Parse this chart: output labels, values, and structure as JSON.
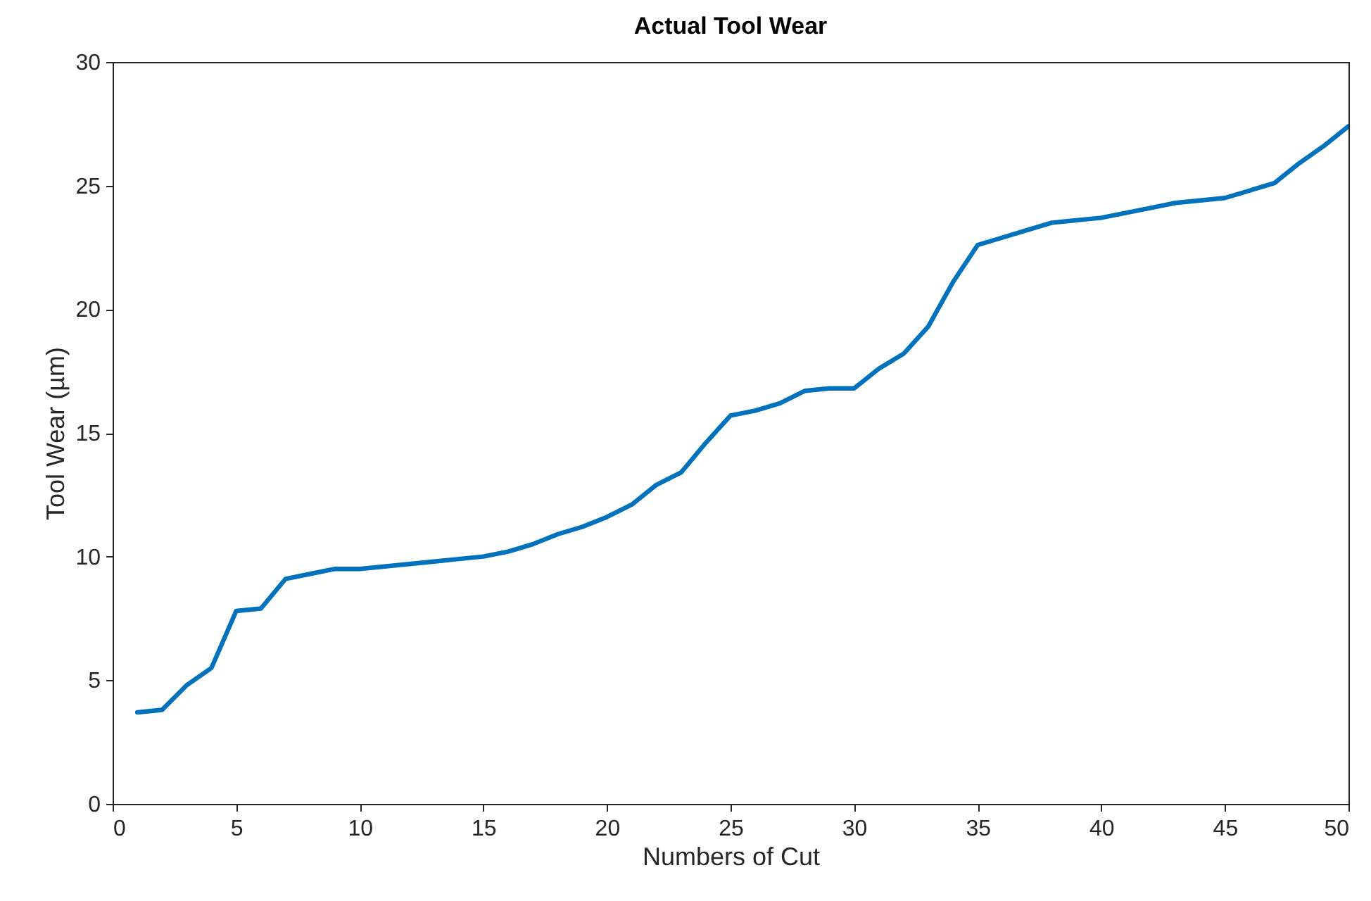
{
  "chart_data": {
    "type": "line",
    "title": "Actual Tool Wear",
    "xlabel": "Numbers of Cut",
    "ylabel": "Tool Wear (µm)",
    "x": [
      1,
      2,
      3,
      4,
      5,
      6,
      7,
      8,
      9,
      10,
      11,
      12,
      13,
      14,
      15,
      16,
      17,
      18,
      19,
      20,
      21,
      22,
      23,
      24,
      25,
      26,
      27,
      28,
      29,
      30,
      31,
      32,
      33,
      34,
      35,
      36,
      37,
      38,
      39,
      40,
      41,
      42,
      43,
      44,
      45,
      46,
      47,
      48,
      49,
      50
    ],
    "series": [
      {
        "color": "#0072bd",
        "values": [
          3.7,
          3.8,
          4.8,
          5.5,
          7.8,
          7.9,
          9.1,
          9.3,
          9.5,
          9.5,
          9.6,
          9.7,
          9.8,
          9.9,
          10.0,
          10.2,
          10.5,
          10.9,
          11.2,
          11.6,
          12.1,
          12.9,
          13.4,
          14.6,
          15.7,
          15.9,
          16.2,
          16.7,
          16.8,
          16.8,
          17.6,
          18.2,
          19.3,
          21.1,
          22.6,
          22.9,
          23.2,
          23.5,
          23.6,
          23.7,
          23.9,
          24.1,
          24.3,
          24.4,
          24.5,
          24.8,
          25.1,
          25.9,
          26.6,
          27.4
        ]
      }
    ],
    "xlim": [
      0,
      50
    ],
    "xticks": [
      0,
      5,
      10,
      15,
      20,
      25,
      30,
      35,
      40,
      45,
      50
    ],
    "ylim": [
      0,
      30
    ],
    "yticks": [
      0,
      5,
      10,
      15,
      20,
      25,
      30
    ],
    "grid": false,
    "line_style": "solid"
  }
}
